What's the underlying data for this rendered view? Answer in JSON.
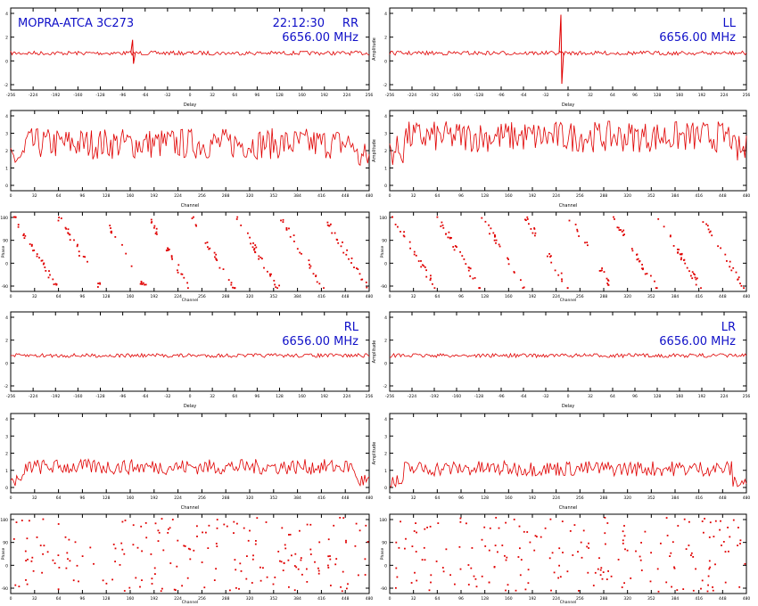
{
  "header": {
    "title": "MOPRA-ATCA 3C273",
    "time": "22:12:30",
    "frequency": "6656.00 MHz",
    "text_color": "#1010c8"
  },
  "colors": {
    "trace": "#e00000",
    "axis": "#000000",
    "background": "#ffffff"
  },
  "panel_groups": [
    {
      "id": "rr",
      "pol_label": "RR",
      "show_title": true,
      "show_time": true,
      "show_freq": true,
      "ylabel_on_delay": false,
      "ylabel_on_amp": false
    },
    {
      "id": "ll",
      "pol_label": "LL",
      "show_title": false,
      "show_time": false,
      "show_freq": true,
      "ylabel_on_delay": true,
      "ylabel_on_amp": true
    },
    {
      "id": "rl",
      "pol_label": "RL",
      "show_title": false,
      "show_time": false,
      "show_freq": true,
      "ylabel_on_delay": false,
      "ylabel_on_amp": false
    },
    {
      "id": "lr",
      "pol_label": "LR",
      "show_title": false,
      "show_time": false,
      "show_freq": true,
      "ylabel_on_delay": true,
      "ylabel_on_amp": true
    }
  ],
  "axis_labels": {
    "delay_x": "Delay",
    "channel_x": "Channel",
    "phase_x": "Channel",
    "amplitude_y": "Amplitude",
    "phase_y": "Phase"
  },
  "tick_labels": {
    "delay_top_x": [
      "-256",
      "-224",
      "-192",
      "-160",
      "-128",
      "-96",
      "-64",
      "-32",
      "0",
      "32",
      "64",
      "96",
      "128",
      "160",
      "192",
      "224",
      "256"
    ],
    "delay_bottom_x": [
      "-256",
      "-224",
      "-192",
      "-160",
      "-128",
      "-96",
      "-64",
      "-32",
      "0",
      "32",
      "64",
      "96",
      "128",
      "160",
      "192",
      "224",
      "256"
    ],
    "delay_y": [
      "4",
      "2",
      "0",
      "-2"
    ],
    "amp_top_y": [
      "4",
      "3",
      "2",
      "1",
      "0"
    ],
    "amp_bottom_y": [
      "4",
      "3",
      "2",
      "1",
      "0"
    ],
    "phase_x": [
      "0",
      "32",
      "64",
      "96",
      "128",
      "160",
      "192",
      "224",
      "256",
      "288",
      "320",
      "352",
      "384",
      "416",
      "448",
      "480"
    ],
    "phase_y": [
      "180",
      "90",
      "0",
      "-90"
    ]
  },
  "chart_data": [
    {
      "type": "line",
      "panel": "delay",
      "series": [
        {
          "name": "RR",
          "spike_at": -0.16,
          "spike_height": 0.9,
          "noise": 0.05
        }
      ]
    },
    {
      "type": "line",
      "panel": "delay",
      "series": [
        {
          "name": "LL",
          "spike_at": -0.02,
          "spike_height": 2.6,
          "noise": 0.05
        }
      ]
    },
    {
      "type": "line",
      "panel": "amplitude",
      "series": [
        {
          "name": "RR",
          "mean": 2.4,
          "spread": 0.9
        }
      ]
    },
    {
      "type": "line",
      "panel": "amplitude",
      "series": [
        {
          "name": "LL",
          "mean": 2.8,
          "spread": 0.9
        }
      ]
    },
    {
      "type": "scatter",
      "panel": "phase",
      "series": [
        {
          "name": "RR",
          "wraps": 8
        }
      ]
    },
    {
      "type": "scatter",
      "panel": "phase",
      "series": [
        {
          "name": "LL",
          "wraps": 8
        }
      ]
    },
    {
      "type": "line",
      "panel": "delay",
      "series": [
        {
          "name": "RL",
          "noise": 0.05
        }
      ]
    },
    {
      "type": "line",
      "panel": "delay",
      "series": [
        {
          "name": "LR",
          "noise": 0.05
        }
      ]
    },
    {
      "type": "line",
      "panel": "amplitude",
      "series": [
        {
          "name": "RL",
          "mean": 1.2,
          "spread": 0.45
        }
      ]
    },
    {
      "type": "line",
      "panel": "amplitude",
      "series": [
        {
          "name": "LR",
          "mean": 1.1,
          "spread": 0.45
        }
      ]
    },
    {
      "type": "scatter",
      "panel": "phase",
      "series": [
        {
          "name": "RL",
          "random": true
        }
      ]
    },
    {
      "type": "scatter",
      "panel": "phase",
      "series": [
        {
          "name": "LR",
          "random": true
        }
      ]
    }
  ]
}
